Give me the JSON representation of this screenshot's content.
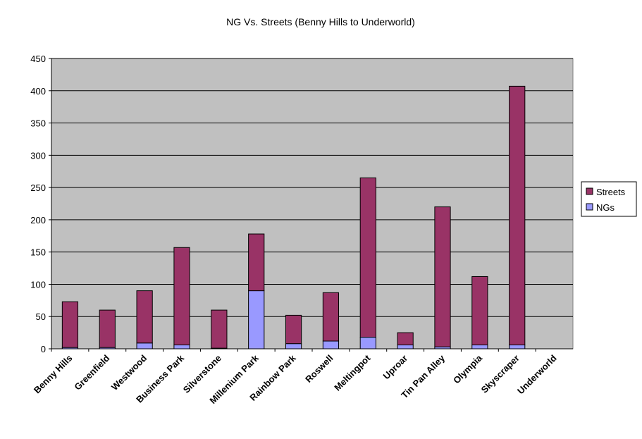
{
  "chart_data": {
    "type": "stacked_bar",
    "title": "NG Vs. Streets (Benny Hills to Underworld)",
    "categories": [
      "Benny Hills",
      "Greenfield",
      "Westwood",
      "Business Park",
      "Silverstone",
      "Millenium Park",
      "Rainbow Park",
      "Roswell",
      "Meltingpot",
      "Uproar",
      "Tin Pan Alley",
      "Olympia",
      "Skyscraper",
      "Underworld"
    ],
    "series": [
      {
        "name": "NGs",
        "color": "#9999ff",
        "values": [
          2,
          2,
          9,
          6,
          1,
          90,
          8,
          12,
          18,
          6,
          3,
          6,
          6,
          0
        ]
      },
      {
        "name": "Streets",
        "color": "#993366",
        "values": [
          71,
          58,
          81,
          151,
          59,
          88,
          44,
          75,
          247,
          19,
          217,
          106,
          401,
          0
        ]
      }
    ],
    "ylim": [
      0,
      450
    ],
    "yticks": [
      0,
      50,
      100,
      150,
      200,
      250,
      300,
      350,
      400,
      450
    ],
    "grid": true,
    "legend": "right"
  }
}
